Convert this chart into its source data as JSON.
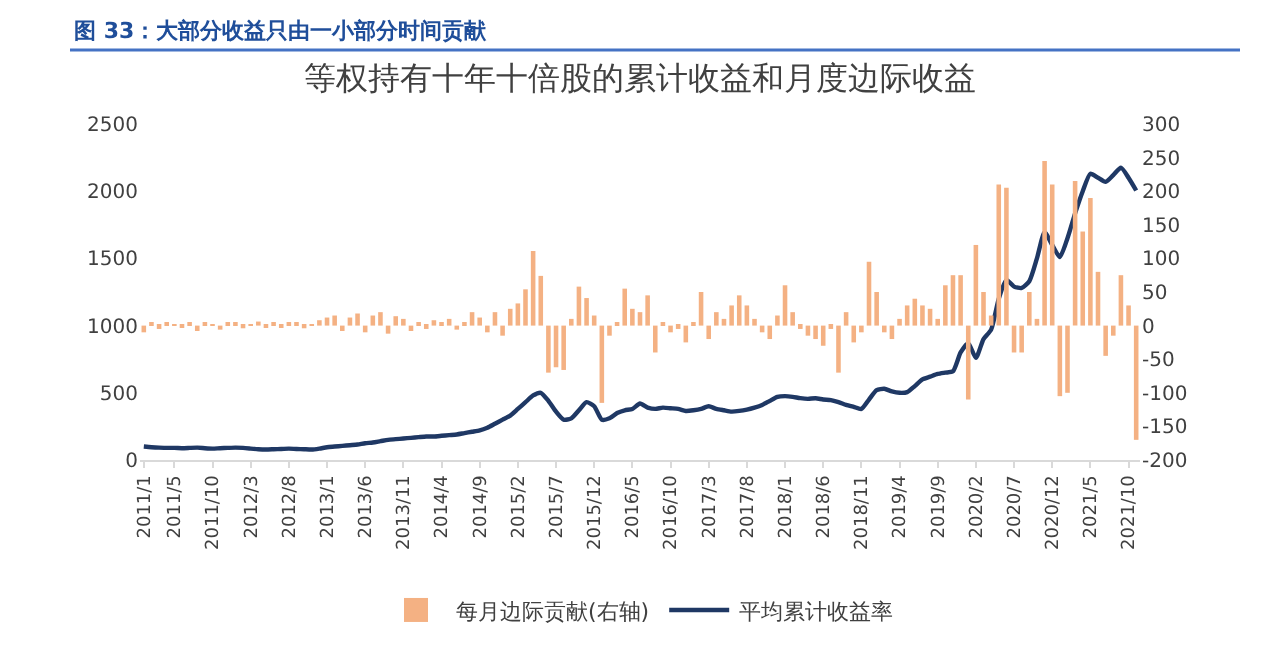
{
  "chart_data": {
    "type": "bar",
    "title": "等权持有十年十倍股的累计收益和月度边际收益",
    "annotations": [
      "图 33：大部分收益只由一小部分时间贡献"
    ],
    "categories": [
      "2011/1",
      null,
      null,
      null,
      "2011/5",
      null,
      null,
      null,
      null,
      "2011/10",
      null,
      null,
      null,
      null,
      "2012/3",
      null,
      null,
      null,
      null,
      "2012/8",
      null,
      null,
      null,
      null,
      "2013/1",
      null,
      null,
      null,
      null,
      "2013/6",
      null,
      null,
      null,
      null,
      "2013/11",
      null,
      null,
      null,
      null,
      "2014/4",
      null,
      null,
      null,
      null,
      "2014/9",
      null,
      null,
      null,
      null,
      "2015/2",
      null,
      null,
      null,
      null,
      "2015/7",
      null,
      null,
      null,
      null,
      "2015/12",
      null,
      null,
      null,
      null,
      "2016/5",
      null,
      null,
      null,
      null,
      "2016/10",
      null,
      null,
      null,
      null,
      "2017/3",
      null,
      null,
      null,
      null,
      "2017/8",
      null,
      null,
      null,
      null,
      "2018/1",
      null,
      null,
      null,
      null,
      "2018/6",
      null,
      null,
      null,
      null,
      "2018/11",
      null,
      null,
      null,
      null,
      "2019/4",
      null,
      null,
      null,
      null,
      "2019/9",
      null,
      null,
      null,
      null,
      "2020/2",
      null,
      null,
      null,
      null,
      "2020/7",
      null,
      null,
      null,
      null,
      "2020/12",
      null,
      null,
      null,
      null,
      "2021/5",
      null,
      null,
      null,
      null,
      "2021/10",
      null
    ],
    "series": [
      {
        "name": "每月边际贡献(右轴)",
        "axis": "y2",
        "color": "#f4b183",
        "values": [
          -10,
          5,
          -5,
          3,
          2,
          -3,
          5,
          -8,
          4,
          2,
          -6,
          3,
          5,
          -4,
          2,
          6,
          -3,
          4,
          -2,
          3,
          5,
          -4,
          2,
          8,
          12,
          15,
          -8,
          12,
          18,
          -10,
          15,
          20,
          -12,
          14,
          10,
          -8,
          5,
          -5,
          8,
          3,
          10,
          -6,
          5,
          20,
          12,
          -10,
          20,
          -15,
          25,
          33,
          54,
          111,
          74,
          -70,
          -62,
          -66,
          10,
          58,
          41,
          15,
          -115,
          -15,
          5,
          55,
          25,
          20,
          45,
          -40,
          5,
          -10,
          -5,
          -25,
          5,
          50,
          -20,
          20,
          10,
          30,
          45,
          30,
          10,
          -10,
          -20,
          15,
          60,
          20,
          -5,
          -15,
          -20,
          -30,
          -5,
          -70,
          20,
          -25,
          -10,
          95,
          50,
          -10,
          -20,
          10,
          30,
          40,
          30,
          25,
          10,
          60,
          75,
          75,
          -110,
          120,
          50,
          15,
          210,
          205,
          -40,
          -40,
          50,
          10,
          245,
          210,
          -105,
          -100,
          215,
          140,
          190,
          80,
          -45,
          -15,
          75,
          30,
          -170
        ]
      },
      {
        "name": "平均累计收益率",
        "type": "line",
        "color": "#1f3864",
        "values": [
          100,
          95,
          92,
          90,
          90,
          88,
          90,
          92,
          88,
          85,
          88,
          90,
          92,
          90,
          85,
          80,
          78,
          80,
          82,
          85,
          82,
          80,
          78,
          85,
          95,
          100,
          105,
          110,
          115,
          125,
          130,
          140,
          150,
          155,
          160,
          165,
          170,
          175,
          175,
          180,
          185,
          190,
          200,
          210,
          220,
          240,
          270,
          300,
          330,
          380,
          430,
          480,
          500,
          440,
          360,
          300,
          310,
          370,
          430,
          400,
          300,
          310,
          350,
          370,
          380,
          420,
          390,
          380,
          390,
          385,
          380,
          365,
          370,
          380,
          400,
          380,
          370,
          360,
          365,
          375,
          390,
          410,
          440,
          470,
          475,
          470,
          460,
          455,
          460,
          450,
          445,
          430,
          410,
          395,
          380,
          450,
          520,
          530,
          510,
          500,
          505,
          550,
          600,
          620,
          640,
          650,
          660,
          800,
          870,
          760,
          900,
          970,
          1200,
          1340,
          1290,
          1280,
          1330,
          1500,
          1695,
          1600,
          1510,
          1650,
          1835,
          2000,
          2130,
          2100,
          2070,
          2120,
          2175,
          2100,
          2005
        ]
      }
    ],
    "ylim": [
      0,
      2500
    ],
    "yticks": [
      0,
      500,
      1000,
      1500,
      2000,
      2500
    ],
    "y2lim": [
      -200,
      300
    ],
    "y2ticks": [
      -200,
      -150,
      -100,
      -50,
      0,
      50,
      100,
      150,
      200,
      250,
      300
    ],
    "legend": "bottom"
  }
}
